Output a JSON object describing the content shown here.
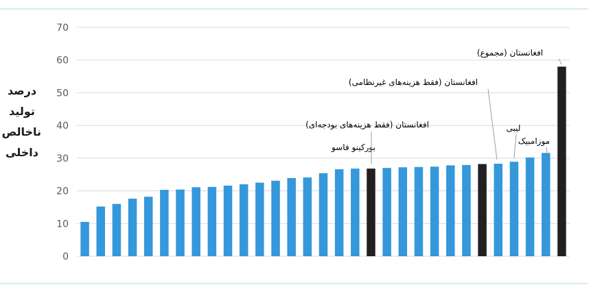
{
  "chart_data": {
    "type": "bar",
    "title": "",
    "xlabel": "",
    "ylabel_lines": [
      "درصد",
      "تولید",
      "ناخالص",
      "داخلی"
    ],
    "ylim": [
      0,
      70
    ],
    "yticks": [
      "0",
      "10",
      "20",
      "30",
      "40",
      "50",
      "60",
      "70"
    ],
    "grid": true,
    "colors": {
      "default": "#3498db",
      "highlight": "#231f20",
      "grid": "#d9d9d9",
      "frame": "#a9d4ea",
      "text": "#595959"
    },
    "values": [
      10.5,
      15.2,
      16.0,
      17.6,
      18.2,
      20.3,
      20.4,
      21.1,
      21.2,
      21.6,
      22.0,
      22.5,
      23.1,
      23.9,
      24.1,
      25.4,
      26.6,
      26.8,
      26.8,
      27.0,
      27.2,
      27.3,
      27.4,
      27.8,
      27.9,
      28.2,
      28.3,
      28.9,
      30.2,
      31.6,
      58.0
    ],
    "highlighted": [
      18,
      25,
      30
    ],
    "annotations": [
      {
        "bar": 17,
        "text": "بورکینو فاسو"
      },
      {
        "bar": 18,
        "text": "افغانستان (فقط هزینه‌های بودجه‌ای)"
      },
      {
        "bar": 25,
        "text": "افغانستان (فقط هزینه‌های غیرنظامی)"
      },
      {
        "bar": 27,
        "text": "لیبی"
      },
      {
        "bar": 29,
        "text": "موزامبیک"
      },
      {
        "bar": 30,
        "text": "افغانستان (مجموع)"
      }
    ]
  }
}
